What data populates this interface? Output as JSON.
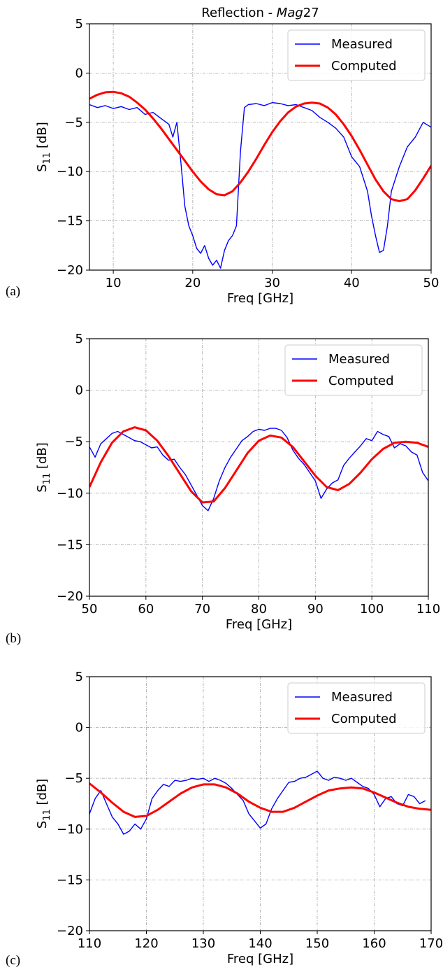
{
  "chart_data": [
    {
      "type": "line",
      "panel_label": "(a)",
      "title": "Reflection - ",
      "title_italic": "Mag",
      "title_suffix": "27",
      "xlabel": "Freq [GHz]",
      "ylabel_main": "S",
      "ylabel_sub": "11",
      "ylabel_tail": " [dB]",
      "xlim": [
        7,
        50
      ],
      "ylim": [
        -20,
        5
      ],
      "xticks": [
        10,
        20,
        30,
        40,
        50
      ],
      "yticks": [
        5,
        0,
        -5,
        -10,
        -15,
        -20
      ],
      "xtick_labels": [
        "10",
        "20",
        "30",
        "40",
        "50"
      ],
      "ytick_labels": [
        "5",
        "0",
        "−5",
        "−10",
        "−15",
        "−20"
      ],
      "grid": true,
      "legend_position": "top-right",
      "series": [
        {
          "name": "Measured",
          "color": "#0000ff",
          "x": [
            7,
            8,
            9,
            10,
            11,
            12,
            13,
            14,
            15,
            16,
            17,
            17.5,
            18,
            18.5,
            19,
            19.5,
            20,
            20.5,
            21,
            21.5,
            22,
            22.5,
            23,
            23.5,
            24,
            24.5,
            25,
            25.5,
            26,
            26.5,
            27,
            28,
            29,
            30,
            31,
            32,
            33,
            34,
            35,
            36,
            37,
            38,
            39,
            40,
            41,
            42,
            42.5,
            43,
            43.5,
            44,
            44.5,
            45,
            46,
            47,
            48,
            49,
            50
          ],
          "y": [
            -3.2,
            -3.5,
            -3.3,
            -3.6,
            -3.4,
            -3.7,
            -3.5,
            -4.2,
            -4.0,
            -4.6,
            -5.2,
            -6.5,
            -5.0,
            -9.0,
            -13.5,
            -15.5,
            -16.5,
            -17.8,
            -18.3,
            -17.5,
            -18.8,
            -19.5,
            -19.0,
            -19.8,
            -18.0,
            -17.0,
            -16.5,
            -15.5,
            -8.0,
            -3.5,
            -3.2,
            -3.1,
            -3.3,
            -3.0,
            -3.1,
            -3.3,
            -3.2,
            -3.5,
            -3.8,
            -4.5,
            -5.0,
            -5.6,
            -6.5,
            -8.5,
            -9.5,
            -12.0,
            -14.5,
            -16.5,
            -18.2,
            -18.0,
            -15.5,
            -12.0,
            -9.5,
            -7.5,
            -6.5,
            -5.0,
            -5.5
          ]
        },
        {
          "name": "Computed",
          "color": "#ff0000",
          "x": [
            7,
            8,
            9,
            10,
            11,
            12,
            13,
            14,
            15,
            16,
            17,
            18,
            19,
            20,
            21,
            22,
            23,
            24,
            25,
            26,
            27,
            28,
            29,
            30,
            31,
            32,
            33,
            34,
            35,
            36,
            37,
            38,
            39,
            40,
            41,
            42,
            43,
            44,
            45,
            46,
            47,
            48,
            49,
            50
          ],
          "y": [
            -2.6,
            -2.2,
            -1.95,
            -1.9,
            -2.05,
            -2.4,
            -3.0,
            -3.7,
            -4.6,
            -5.6,
            -6.7,
            -7.8,
            -8.9,
            -10.0,
            -11.0,
            -11.8,
            -12.3,
            -12.4,
            -12.0,
            -11.1,
            -10.0,
            -8.7,
            -7.3,
            -6.0,
            -4.9,
            -4.0,
            -3.4,
            -3.1,
            -3.0,
            -3.1,
            -3.5,
            -4.2,
            -5.2,
            -6.4,
            -7.8,
            -9.3,
            -10.8,
            -12.0,
            -12.8,
            -13.0,
            -12.8,
            -11.9,
            -10.7,
            -9.4
          ]
        }
      ]
    },
    {
      "type": "line",
      "panel_label": "(b)",
      "title": "",
      "xlabel": "Freq [GHz]",
      "ylabel_main": "S",
      "ylabel_sub": "11",
      "ylabel_tail": " [dB]",
      "xlim": [
        50,
        110
      ],
      "ylim": [
        -20,
        5
      ],
      "xticks": [
        50,
        60,
        70,
        80,
        90,
        100,
        110
      ],
      "yticks": [
        5,
        0,
        -5,
        -10,
        -15,
        -20
      ],
      "xtick_labels": [
        "50",
        "60",
        "70",
        "80",
        "90",
        "100",
        "110"
      ],
      "ytick_labels": [
        "5",
        "0",
        "−5",
        "−10",
        "−15",
        "−20"
      ],
      "grid": true,
      "legend_position": "top-right",
      "series": [
        {
          "name": "Measured",
          "color": "#0000ff",
          "x": [
            50,
            51,
            52,
            53,
            54,
            55,
            56,
            57,
            58,
            59,
            60,
            61,
            62,
            63,
            64,
            65,
            66,
            67,
            68,
            69,
            70,
            71,
            72,
            73,
            74,
            75,
            76,
            77,
            78,
            79,
            80,
            81,
            82,
            83,
            84,
            85,
            86,
            87,
            88,
            89,
            90,
            91,
            92,
            93,
            94,
            95,
            96,
            97,
            98,
            99,
            100,
            101,
            102,
            103,
            104,
            105,
            106,
            107,
            108,
            109,
            110
          ],
          "y": [
            -5.5,
            -6.5,
            -5.2,
            -4.7,
            -4.2,
            -4.0,
            -4.3,
            -4.6,
            -4.9,
            -5.0,
            -5.3,
            -5.6,
            -5.5,
            -6.3,
            -6.8,
            -6.7,
            -7.5,
            -8.2,
            -9.2,
            -10.2,
            -11.2,
            -11.7,
            -10.5,
            -8.8,
            -7.5,
            -6.5,
            -5.7,
            -4.9,
            -4.5,
            -4.0,
            -3.8,
            -3.9,
            -3.7,
            -3.7,
            -3.9,
            -4.6,
            -5.8,
            -6.6,
            -7.2,
            -8.0,
            -8.8,
            -10.5,
            -9.6,
            -9.0,
            -8.7,
            -7.3,
            -6.6,
            -6.0,
            -5.4,
            -4.7,
            -4.9,
            -4.0,
            -4.3,
            -4.5,
            -5.6,
            -5.2,
            -5.4,
            -6.0,
            -6.3,
            -8.0,
            -8.8
          ]
        },
        {
          "name": "Computed",
          "color": "#ff0000",
          "x": [
            50,
            52,
            54,
            56,
            58,
            60,
            62,
            64,
            66,
            68,
            70,
            72,
            74,
            76,
            78,
            80,
            82,
            84,
            86,
            88,
            90,
            92,
            94,
            96,
            98,
            100,
            102,
            104,
            106,
            108,
            110
          ],
          "y": [
            -9.4,
            -7.0,
            -5.1,
            -4.0,
            -3.6,
            -3.9,
            -4.9,
            -6.4,
            -8.1,
            -9.8,
            -10.9,
            -10.8,
            -9.5,
            -7.8,
            -6.1,
            -4.9,
            -4.4,
            -4.6,
            -5.5,
            -6.9,
            -8.3,
            -9.4,
            -9.7,
            -9.1,
            -8.0,
            -6.7,
            -5.7,
            -5.1,
            -5.0,
            -5.1,
            -5.5
          ]
        }
      ]
    },
    {
      "type": "line",
      "panel_label": "(c)",
      "title": "",
      "xlabel": "Freq [GHz]",
      "ylabel_main": "S",
      "ylabel_sub": "11",
      "ylabel_tail": " [dB]",
      "xlim": [
        110,
        170
      ],
      "ylim": [
        -20,
        5
      ],
      "xticks": [
        110,
        120,
        130,
        140,
        150,
        160,
        170
      ],
      "yticks": [
        5,
        0,
        -5,
        -10,
        -15,
        -20
      ],
      "xtick_labels": [
        "110",
        "120",
        "130",
        "140",
        "150",
        "160",
        "170"
      ],
      "ytick_labels": [
        "5",
        "0",
        "−5",
        "−10",
        "−15",
        "−20"
      ],
      "grid": true,
      "legend_position": "top-right",
      "series": [
        {
          "name": "Measured",
          "color": "#0000ff",
          "x": [
            110,
            111,
            112,
            113,
            114,
            115,
            116,
            117,
            118,
            119,
            120,
            121,
            122,
            123,
            124,
            125,
            126,
            127,
            128,
            129,
            130,
            131,
            132,
            133,
            134,
            135,
            136,
            137,
            138,
            139,
            140,
            141,
            142,
            143,
            144,
            145,
            146,
            147,
            148,
            149,
            150,
            151,
            152,
            153,
            154,
            155,
            156,
            157,
            158,
            159,
            160,
            161,
            162,
            163,
            164,
            165,
            166,
            167,
            168,
            169
          ],
          "y": [
            -8.5,
            -7.0,
            -6.2,
            -7.5,
            -8.8,
            -9.5,
            -10.5,
            -10.2,
            -9.5,
            -10.0,
            -9.0,
            -7.0,
            -6.2,
            -5.6,
            -5.8,
            -5.2,
            -5.3,
            -5.2,
            -5.0,
            -5.1,
            -5.0,
            -5.3,
            -5.0,
            -5.2,
            -5.5,
            -6.0,
            -6.6,
            -7.2,
            -8.5,
            -9.2,
            -9.9,
            -9.5,
            -8.0,
            -7.0,
            -6.2,
            -5.4,
            -5.3,
            -5.0,
            -4.9,
            -4.6,
            -4.3,
            -5.0,
            -5.2,
            -4.9,
            -5.0,
            -5.2,
            -5.0,
            -5.4,
            -5.8,
            -6.0,
            -6.6,
            -7.8,
            -7.0,
            -6.8,
            -7.5,
            -7.7,
            -6.6,
            -6.8,
            -7.5,
            -7.2
          ]
        },
        {
          "name": "Computed",
          "color": "#ff0000",
          "x": [
            110,
            112,
            114,
            116,
            118,
            120,
            122,
            124,
            126,
            128,
            130,
            132,
            134,
            136,
            138,
            140,
            142,
            144,
            146,
            148,
            150,
            152,
            154,
            156,
            158,
            160,
            162,
            164,
            166,
            168,
            170
          ],
          "y": [
            -5.5,
            -6.4,
            -7.4,
            -8.3,
            -8.8,
            -8.7,
            -8.1,
            -7.3,
            -6.5,
            -5.9,
            -5.6,
            -5.6,
            -5.9,
            -6.5,
            -7.3,
            -7.9,
            -8.3,
            -8.3,
            -7.9,
            -7.3,
            -6.7,
            -6.2,
            -6.0,
            -5.9,
            -6.0,
            -6.4,
            -6.9,
            -7.4,
            -7.8,
            -8.0,
            -8.1
          ]
        }
      ]
    }
  ]
}
